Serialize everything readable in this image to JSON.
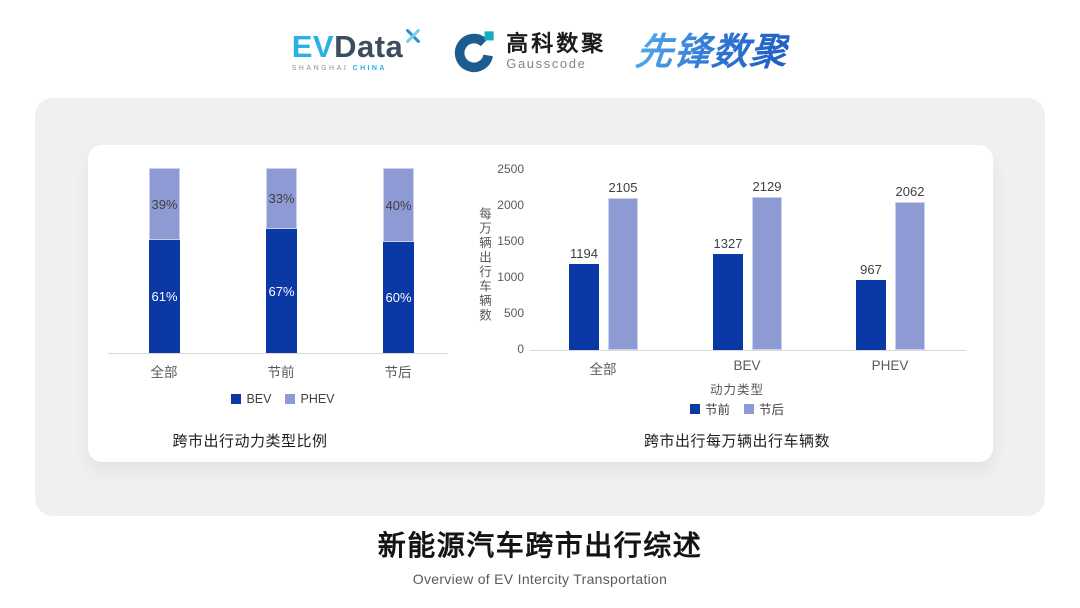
{
  "header": {
    "logos": {
      "evdata": {
        "ev": "EV",
        "data": "Data",
        "sub_left": "SHANGHAI",
        "sub_right": "CHINA"
      },
      "gausscode": {
        "cn": "高科数聚",
        "en": "Gausscode"
      },
      "pioneer": {
        "cn": "先锋数聚"
      }
    }
  },
  "colors": {
    "bev_dark_blue": "#0a39a6",
    "phev_light_blue": "#8e9ad3",
    "axis_text": "#595959",
    "label_text": "#3f3f3f",
    "evdata_cyan": "#29b1e5",
    "gausscode_navy": "#1b5d90",
    "gausscode_teal": "#12b0bf"
  },
  "chart_data": [
    {
      "type": "bar",
      "variant": "stacked_percent",
      "title": "跨市出行动力类型比例",
      "categories": [
        "全部",
        "节前",
        "节后"
      ],
      "series": [
        {
          "name": "BEV",
          "color": "#0a39a6",
          "text_color": "#ffffff",
          "values": [
            61,
            67,
            60
          ]
        },
        {
          "name": "PHEV",
          "color": "#8e9ad3",
          "text_color": "#404040",
          "values": [
            39,
            33,
            40
          ]
        }
      ],
      "value_suffix": "%",
      "ylim": [
        0,
        100
      ],
      "grid": false,
      "legend_position": "bottom"
    },
    {
      "type": "bar",
      "variant": "grouped",
      "title": "跨市出行每万辆出行车辆数",
      "categories": [
        "全部",
        "BEV",
        "PHEV"
      ],
      "xlabel": "动力类型",
      "ylabel": "每万辆出行车辆数",
      "ylim": [
        0,
        2500
      ],
      "yticks": [
        0,
        500,
        1000,
        1500,
        2000,
        2500
      ],
      "grid": false,
      "legend_position": "bottom",
      "series": [
        {
          "name": "节前",
          "color": "#0a39a6",
          "values": [
            1194,
            1327,
            967
          ]
        },
        {
          "name": "节后",
          "color": "#8e9ad3",
          "values": [
            2105,
            2129,
            2062
          ]
        }
      ]
    }
  ],
  "footer": {
    "title": "新能源汽车跨市出行综述",
    "subtitle": "Overview of EV Intercity Transportation"
  }
}
